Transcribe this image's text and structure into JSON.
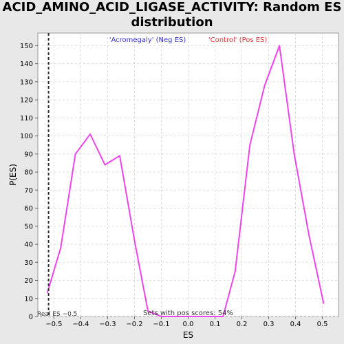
{
  "chart_data": {
    "type": "line",
    "title_line1": "ACID_AMINO_ACID_LIGASE_ACTIVITY: Random ES",
    "title_line2": "distribution",
    "xlabel": "ES",
    "ylabel": "P(ES)",
    "xlim": [
      -0.56,
      0.56
    ],
    "ylim": [
      0,
      157
    ],
    "x_ticks": [
      -0.5,
      -0.4,
      -0.3,
      -0.2,
      -0.1,
      0.0,
      0.1,
      0.2,
      0.3,
      0.4,
      0.5
    ],
    "x_tick_labels": [
      "−0.5",
      "−0.4",
      "−0.3",
      "−0.2",
      "−0.1",
      "0.0",
      "0.1",
      "0.2",
      "0.3",
      "0.4",
      "0.5"
    ],
    "y_ticks": [
      0,
      10,
      20,
      30,
      40,
      50,
      60,
      70,
      80,
      90,
      100,
      110,
      120,
      130,
      140,
      150
    ],
    "grid": true,
    "neg_label": "'Acromegaly' (Neg ES)",
    "pos_label": "'Control' (Pos ES)",
    "neg_label_color": "#3333cc",
    "pos_label_color": "#dd3333",
    "series": [
      {
        "color": "#ee44ee",
        "points": [
          [
            -0.525,
            13
          ],
          [
            -0.475,
            38
          ],
          [
            -0.42,
            90
          ],
          [
            -0.365,
            101
          ],
          [
            -0.31,
            84
          ],
          [
            -0.255,
            89
          ],
          [
            -0.2,
            42
          ],
          [
            -0.15,
            3
          ],
          [
            -0.1,
            0
          ],
          [
            -0.05,
            0
          ],
          [
            0.0,
            0
          ],
          [
            0.05,
            0
          ],
          [
            0.1,
            0
          ],
          [
            0.13,
            0
          ],
          [
            0.175,
            25
          ],
          [
            0.23,
            95
          ],
          [
            0.285,
            128
          ],
          [
            0.34,
            150
          ],
          [
            0.395,
            90
          ],
          [
            0.45,
            45
          ],
          [
            0.505,
            7
          ]
        ]
      }
    ],
    "real_es": -0.52,
    "real_es_label": "Real ES −0.5",
    "pos_scores_label": "Sets with pos scores: 54%"
  }
}
